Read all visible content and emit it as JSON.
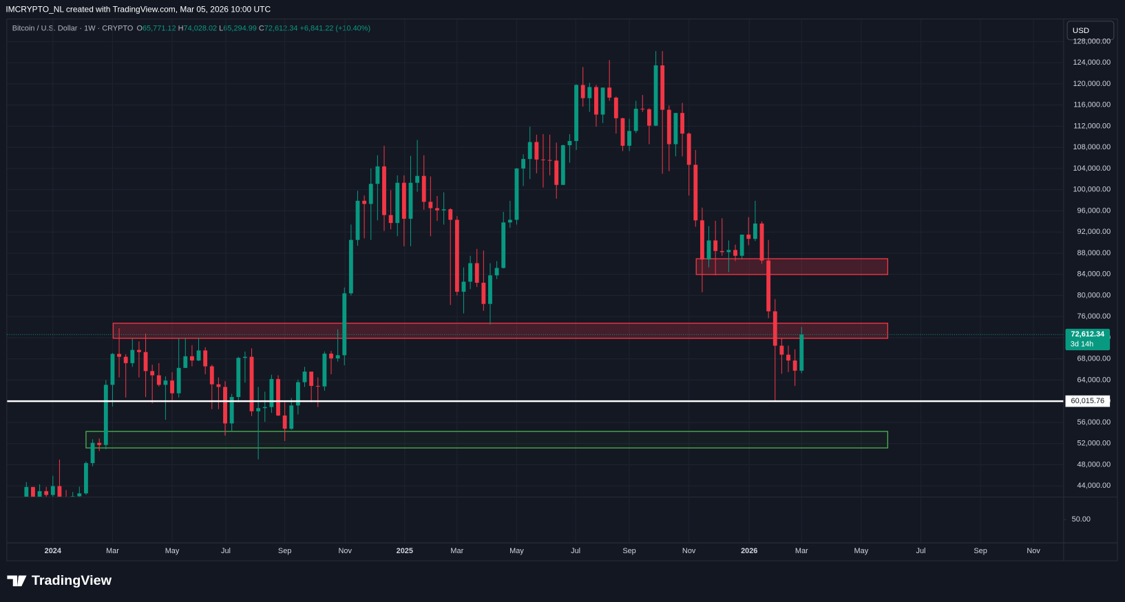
{
  "header": "IMCRYPTO_NL created with TradingView.com, Mar 05, 2026 10:00 UTC",
  "branding": "TradingView",
  "currency_button": "USD",
  "chart_data": {
    "type": "candlestick",
    "legend": {
      "symbol": "Bitcoin / U.S. Dollar · 1W · CRYPTO",
      "o_label": "O",
      "o": "65,771.12",
      "h_label": "H",
      "h": "74,028.02",
      "l_label": "L",
      "l": "65,294.99",
      "c_label": "C",
      "c": "72,612.34",
      "change": "+6,841.22 (+10.40%)"
    },
    "up_color": "#089981",
    "down_color": "#f23645",
    "grid": true,
    "xlim": [
      -6.9,
      152.5
    ],
    "xticks": [
      {
        "value": 0,
        "label": "2024"
      },
      {
        "value": 9,
        "label": "Mar"
      },
      {
        "value": 18,
        "label": "May"
      },
      {
        "value": 26.1,
        "label": "Jul"
      },
      {
        "value": 35,
        "label": "Sep"
      },
      {
        "value": 44.1,
        "label": "Nov"
      },
      {
        "value": 53.1,
        "label": "2025"
      },
      {
        "value": 61,
        "label": "Mar"
      },
      {
        "value": 70,
        "label": "May"
      },
      {
        "value": 78.9,
        "label": "Jul"
      },
      {
        "value": 87,
        "label": "Sep"
      },
      {
        "value": 96,
        "label": "Nov"
      },
      {
        "value": 105.1,
        "label": "2026"
      },
      {
        "value": 113,
        "label": "Mar"
      },
      {
        "value": 122,
        "label": "May"
      },
      {
        "value": 131,
        "label": "Jul"
      },
      {
        "value": 140,
        "label": "Sep"
      },
      {
        "value": 148,
        "label": "Nov"
      }
    ],
    "ylim": [
      41960,
      132200
    ],
    "yticks": [
      {
        "value": 128000,
        "label": "128,000.00"
      },
      {
        "value": 124000,
        "label": "124,000.00"
      },
      {
        "value": 120000,
        "label": "120,000.00"
      },
      {
        "value": 116000,
        "label": "116,000.00"
      },
      {
        "value": 112000,
        "label": "112,000.00"
      },
      {
        "value": 108000,
        "label": "108,000.00"
      },
      {
        "value": 104000,
        "label": "104,000.00"
      },
      {
        "value": 100000,
        "label": "100,000.00"
      },
      {
        "value": 96000,
        "label": "96,000.00"
      },
      {
        "value": 92000,
        "label": "92,000.00"
      },
      {
        "value": 88000,
        "label": "88,000.00"
      },
      {
        "value": 84000,
        "label": "84,000.00"
      },
      {
        "value": 80000,
        "label": "80,000.00"
      },
      {
        "value": 76000,
        "label": "76,000.00"
      },
      {
        "value": 72000,
        "label": "72,000.00"
      },
      {
        "value": 68000,
        "label": "68,000.00"
      },
      {
        "value": 64000,
        "label": "64,000.00"
      },
      {
        "value": 60000,
        "label": "60,000.00"
      },
      {
        "value": 56000,
        "label": "56,000.00"
      },
      {
        "value": 52000,
        "label": "52,000.00"
      },
      {
        "value": 48000,
        "label": "48,000.00"
      },
      {
        "value": 44000,
        "label": "44,000.00"
      }
    ],
    "subpane": {
      "ylim": [
        0,
        100
      ],
      "yticks": [
        {
          "value": 50,
          "label": "50.00"
        }
      ]
    },
    "candles": {
      "x": [
        -4,
        -3,
        -2,
        -1,
        0,
        1,
        2,
        3,
        4,
        5,
        6,
        7,
        8,
        9,
        10,
        11,
        12,
        13,
        14,
        15,
        16,
        17,
        18,
        19,
        20,
        21,
        22,
        23,
        24,
        25,
        26,
        27,
        28,
        29,
        30,
        31,
        32,
        33,
        34,
        35,
        36,
        37,
        38,
        39,
        40,
        41,
        42,
        43,
        44,
        45,
        46,
        47,
        48,
        49,
        50,
        51,
        52,
        53,
        54,
        55,
        56,
        57,
        58,
        59,
        60,
        61,
        62,
        63,
        64,
        65,
        66,
        67,
        68,
        69,
        70,
        71,
        72,
        73,
        74,
        75,
        76,
        77,
        78,
        79,
        80,
        81,
        82,
        83,
        84,
        85,
        86,
        87,
        88,
        89,
        90,
        91,
        92,
        93,
        94,
        95,
        96,
        97,
        98,
        99,
        100,
        101,
        102,
        103,
        104,
        105,
        106,
        107,
        108,
        109,
        110,
        111,
        112,
        113
      ],
      "open": [
        39970,
        43790,
        41370,
        43000,
        42280,
        43950,
        41730,
        41580,
        42030,
        42580,
        48300,
        52130,
        51730,
        63100,
        68950,
        68400,
        67200,
        69700,
        69300,
        65700,
        64900,
        63100,
        63900,
        61500,
        66300,
        68500,
        67700,
        69600,
        66600,
        63200,
        62700,
        55800,
        60800,
        68200,
        68400,
        58100,
        58700,
        58900,
        64200,
        57300,
        54800,
        59200,
        63600,
        65600,
        62900,
        62800,
        69000,
        68100,
        68700,
        80400,
        90500,
        97900,
        97300,
        101100,
        104400,
        95200,
        93700,
        101300,
        94500,
        101300,
        102600,
        97700,
        96500,
        96100,
        96300,
        94300,
        80700,
        82600,
        86100,
        82400,
        78400,
        83800,
        85200,
        93800,
        94300,
        104000,
        105800,
        109000,
        105700,
        105600,
        105500,
        100900,
        108400,
        109200,
        119800,
        117300,
        119400,
        114200,
        119300,
        117400,
        113500,
        108300,
        111100,
        115300,
        115200,
        112100,
        123500,
        115100,
        108600,
        114500,
        110600,
        104700,
        94200,
        86800,
        90400,
        88400,
        88200,
        88600,
        87500,
        91500,
        90700,
        93600,
        86600,
        77000,
        70500,
        68800,
        67700,
        65771.12
      ],
      "high": [
        44700,
        43800,
        44300,
        43800,
        45900,
        48970,
        43200,
        42850,
        43850,
        48600,
        52800,
        52950,
        64000,
        69100,
        73800,
        68900,
        71800,
        71300,
        72800,
        66900,
        67200,
        64700,
        65500,
        71900,
        71900,
        70600,
        72000,
        70200,
        66900,
        64500,
        63800,
        61400,
        68400,
        69400,
        70000,
        62700,
        61800,
        65000,
        64900,
        59800,
        60600,
        64100,
        66500,
        65600,
        64500,
        69400,
        69500,
        73600,
        81500,
        93400,
        99800,
        98900,
        104000,
        106500,
        108300,
        99900,
        102700,
        102700,
        106400,
        109400,
        106500,
        102500,
        98800,
        99500,
        96500,
        95000,
        85300,
        87500,
        88800,
        88500,
        86100,
        86500,
        95800,
        97900,
        104100,
        106700,
        111900,
        110400,
        110500,
        110400,
        108900,
        108500,
        110500,
        119900,
        123200,
        120200,
        119800,
        119300,
        124500,
        117600,
        113600,
        113400,
        116800,
        117900,
        115400,
        126200,
        126200,
        115900,
        114500,
        116400,
        110800,
        107500,
        96600,
        93100,
        94100,
        94600,
        90400,
        89600,
        91500,
        94800,
        97900,
        94000,
        90500,
        79300,
        72000,
        70500,
        69800,
        74028.02
      ],
      "low": [
        39970,
        40200,
        40500,
        41500,
        40750,
        41500,
        40300,
        38500,
        41850,
        42300,
        47700,
        50600,
        50900,
        59000,
        64500,
        60700,
        66500,
        64500,
        60800,
        59600,
        62800,
        56500,
        60200,
        60700,
        66300,
        66600,
        67600,
        65100,
        58500,
        58500,
        53500,
        54300,
        59800,
        63500,
        57200,
        49000,
        56100,
        57800,
        57200,
        52500,
        54600,
        57500,
        62700,
        59800,
        58900,
        62000,
        65100,
        67500,
        66800,
        80000,
        89400,
        90800,
        90500,
        94200,
        92200,
        92500,
        91200,
        89300,
        89300,
        99600,
        96200,
        91200,
        94100,
        93400,
        78200,
        80000,
        76600,
        81200,
        81600,
        77100,
        74500,
        83100,
        85100,
        92800,
        93400,
        100700,
        102000,
        103100,
        100400,
        102700,
        98300,
        100900,
        105100,
        107500,
        115700,
        114700,
        111900,
        112600,
        116800,
        110600,
        107300,
        107300,
        110700,
        114700,
        108600,
        112000,
        103000,
        103500,
        106300,
        106300,
        98900,
        93000,
        80600,
        85300,
        83800,
        87500,
        84400,
        86500,
        86800,
        89500,
        90300,
        86000,
        75700,
        60015.76,
        65200,
        65500,
        62900,
        65294.99
      ],
      "close": [
        43790,
        41370,
        43000,
        42280,
        43950,
        41730,
        41580,
        42030,
        42580,
        48300,
        52130,
        51730,
        63100,
        68950,
        68400,
        67200,
        69700,
        69300,
        65700,
        64900,
        63100,
        63900,
        61500,
        66300,
        68500,
        67700,
        69600,
        66600,
        63200,
        62700,
        55800,
        60800,
        68200,
        68400,
        58100,
        58700,
        58900,
        64200,
        57300,
        54800,
        59200,
        63600,
        65600,
        62900,
        62800,
        69000,
        68100,
        68700,
        80400,
        90500,
        97900,
        97300,
        101100,
        104400,
        95200,
        93700,
        101300,
        94500,
        101300,
        102600,
        97700,
        96500,
        96100,
        96300,
        94300,
        80700,
        82600,
        86100,
        82400,
        78400,
        83800,
        85200,
        93800,
        94300,
        104000,
        105800,
        109000,
        105700,
        105600,
        105500,
        100900,
        108400,
        109200,
        119800,
        117300,
        119400,
        114200,
        119300,
        117400,
        113500,
        108300,
        111100,
        115300,
        115200,
        112100,
        123500,
        115100,
        108600,
        114500,
        110600,
        104700,
        94200,
        86800,
        90400,
        88400,
        88200,
        88600,
        87500,
        91500,
        90700,
        93600,
        86600,
        77000,
        70500,
        68800,
        67700,
        65771.12,
        72612.34
      ]
    },
    "last_price": {
      "value": 72612.34,
      "label": "72,612.34"
    },
    "countdown": "3d 14h",
    "level": {
      "value": 60015.76,
      "label": "60,015.76",
      "color": "#ffffff"
    },
    "zones": [
      {
        "x": [
          9.1,
          126
        ],
        "y": [
          71900,
          74750
        ],
        "color": "#f23645"
      },
      {
        "x": [
          97.1,
          126
        ],
        "y": [
          83960,
          86940
        ],
        "color": "#f23645"
      },
      {
        "x": [
          5,
          126
        ],
        "y": [
          51170,
          54290
        ],
        "color": "#4caf50"
      }
    ]
  }
}
